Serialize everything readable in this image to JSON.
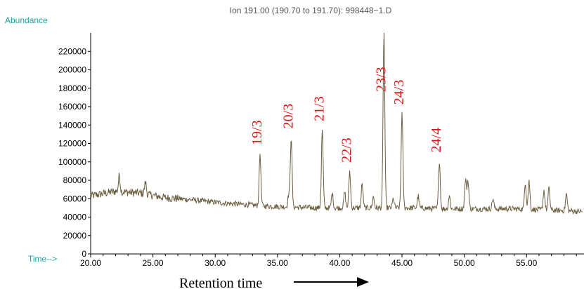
{
  "header": {
    "ion_label": "Ion 191.00 (190.70 to 191.70): 998448~1.D",
    "ylabel": "Abundance",
    "time_marker": "Time-->",
    "xlabel": "Retention time"
  },
  "chart_data": {
    "type": "line",
    "title": "Ion 191.00 (190.70 to 191.70): 998448~1.D",
    "xlabel": "Retention time",
    "ylabel": "Abundance",
    "xlim": [
      20,
      59.5
    ],
    "ylim": [
      0,
      240000
    ],
    "grid": false,
    "line_color": "#6b5d3f",
    "peak_label_color": "#e01010",
    "x_ticks": [
      20,
      25,
      30,
      35,
      40,
      45,
      50,
      55
    ],
    "x_tick_labels": [
      "20.00",
      "25.00",
      "30.00",
      "35.00",
      "40.00",
      "45.00",
      "50.00",
      "55.00"
    ],
    "y_ticks": [
      0,
      20000,
      40000,
      60000,
      80000,
      100000,
      120000,
      140000,
      160000,
      180000,
      200000,
      220000
    ],
    "y_tick_labels": [
      "0",
      "20000",
      "40000",
      "60000",
      "80000",
      "100000",
      "120000",
      "140000",
      "160000",
      "180000",
      "200000",
      "220000"
    ],
    "peaks": [
      {
        "label": "19/3",
        "x": 33.6,
        "y": 109000
      },
      {
        "label": "20/3",
        "x": 36.1,
        "y": 127000
      },
      {
        "label": "21/3",
        "x": 38.6,
        "y": 135000
      },
      {
        "label": "22/3",
        "x": 40.8,
        "y": 90000
      },
      {
        "label": "23/3",
        "x": 43.55,
        "y": 241000
      },
      {
        "label": "24/3",
        "x": 45.0,
        "y": 153000
      },
      {
        "label": "24/4",
        "x": 48.0,
        "y": 101000
      }
    ],
    "minor_peaks": [
      {
        "x": 22.3,
        "y": 85000
      },
      {
        "x": 24.4,
        "y": 78000
      },
      {
        "x": 35.9,
        "y": 64000
      },
      {
        "x": 39.4,
        "y": 66000
      },
      {
        "x": 40.4,
        "y": 67000
      },
      {
        "x": 41.8,
        "y": 76000
      },
      {
        "x": 42.7,
        "y": 62000
      },
      {
        "x": 44.3,
        "y": 60000
      },
      {
        "x": 46.3,
        "y": 63000
      },
      {
        "x": 48.8,
        "y": 63000
      },
      {
        "x": 50.1,
        "y": 81000
      },
      {
        "x": 50.3,
        "y": 80000
      },
      {
        "x": 52.3,
        "y": 60000
      },
      {
        "x": 54.9,
        "y": 78000
      },
      {
        "x": 55.2,
        "y": 79000
      },
      {
        "x": 56.4,
        "y": 69000
      },
      {
        "x": 56.8,
        "y": 71000
      },
      {
        "x": 58.2,
        "y": 65000
      }
    ],
    "baseline": [
      {
        "x": 20.0,
        "y": 63000
      },
      {
        "x": 22.0,
        "y": 68000
      },
      {
        "x": 24.0,
        "y": 66000
      },
      {
        "x": 26.0,
        "y": 61000
      },
      {
        "x": 28.0,
        "y": 59000
      },
      {
        "x": 30.0,
        "y": 56000
      },
      {
        "x": 32.0,
        "y": 54000
      },
      {
        "x": 34.0,
        "y": 52000
      },
      {
        "x": 36.0,
        "y": 51000
      },
      {
        "x": 38.0,
        "y": 50000
      },
      {
        "x": 40.0,
        "y": 50000
      },
      {
        "x": 42.0,
        "y": 50000
      },
      {
        "x": 44.0,
        "y": 50000
      },
      {
        "x": 46.0,
        "y": 50000
      },
      {
        "x": 48.0,
        "y": 49000
      },
      {
        "x": 50.0,
        "y": 49000
      },
      {
        "x": 52.0,
        "y": 49000
      },
      {
        "x": 54.0,
        "y": 49000
      },
      {
        "x": 56.0,
        "y": 48000
      },
      {
        "x": 58.0,
        "y": 47000
      },
      {
        "x": 59.5,
        "y": 46000
      }
    ]
  }
}
